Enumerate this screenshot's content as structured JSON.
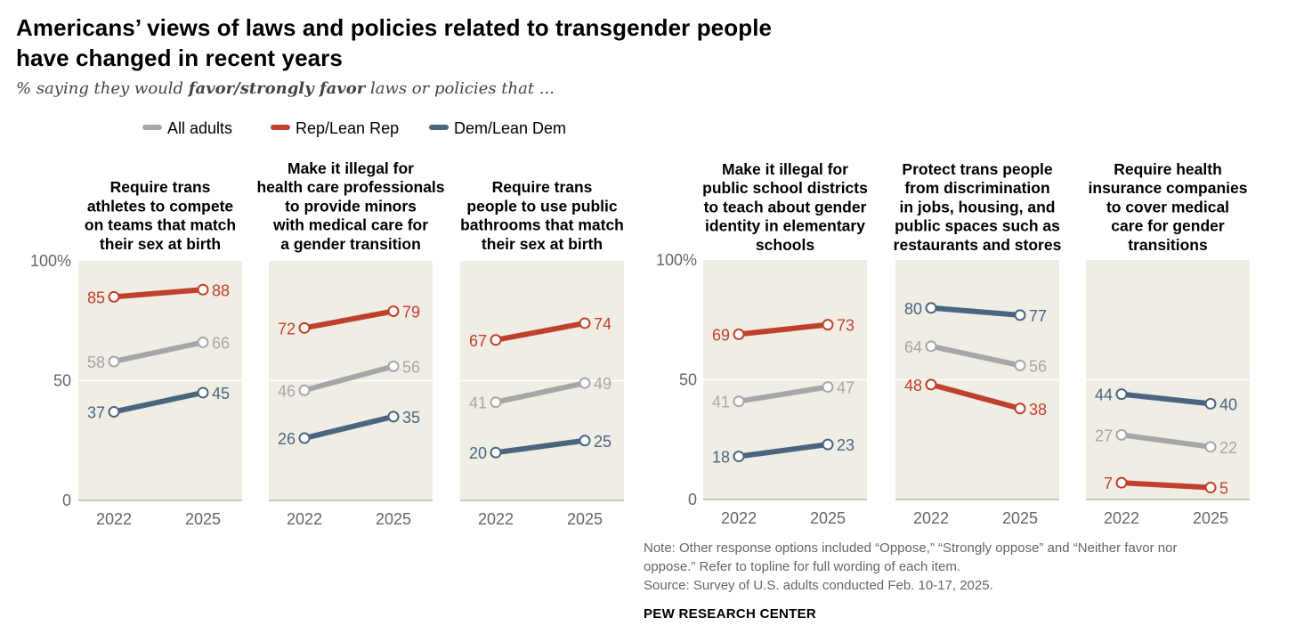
{
  "title": "Americans’ views of laws and policies related to transgender people have changed in recent years",
  "subtitle": {
    "prefix": "% saying they would ",
    "emphasis": "favor/strongly favor",
    "suffix": " laws or policies that ..."
  },
  "colors": {
    "all_adults": "#a6a6a6",
    "rep": "#c0402e",
    "dem": "#4a6580",
    "panel_bg": "#efede4",
    "axis_text": "#666666"
  },
  "legend": [
    {
      "key": "all",
      "label": "All adults"
    },
    {
      "key": "rep",
      "label": "Rep/Lean Rep"
    },
    {
      "key": "dem",
      "label": "Dem/Lean Dem"
    }
  ],
  "chart_data": {
    "type": "line",
    "x": [
      "2022",
      "2025"
    ],
    "y_ticks": [
      "100%",
      "50",
      "0"
    ],
    "ylim": [
      0,
      100
    ],
    "grid": true,
    "legend_position": "top",
    "panels": [
      {
        "title_lines": [
          "Require trans",
          "athletes to compete",
          "on teams that match",
          "their sex at birth"
        ],
        "series": [
          {
            "name": "Rep/Lean Rep",
            "values": [
              85,
              88
            ]
          },
          {
            "name": "All adults",
            "values": [
              58,
              66
            ]
          },
          {
            "name": "Dem/Lean Dem",
            "values": [
              37,
              45
            ]
          }
        ]
      },
      {
        "title_lines": [
          "Make it illegal for",
          "health care professionals",
          "to provide minors",
          "with medical care for",
          "a gender transition"
        ],
        "series": [
          {
            "name": "Rep/Lean Rep",
            "values": [
              72,
              79
            ]
          },
          {
            "name": "All adults",
            "values": [
              46,
              56
            ]
          },
          {
            "name": "Dem/Lean Dem",
            "values": [
              26,
              35
            ]
          }
        ]
      },
      {
        "title_lines": [
          "Require trans",
          "people to use public",
          "bathrooms that match",
          "their sex at birth"
        ],
        "series": [
          {
            "name": "Rep/Lean Rep",
            "values": [
              67,
              74
            ]
          },
          {
            "name": "All adults",
            "values": [
              41,
              49
            ]
          },
          {
            "name": "Dem/Lean Dem",
            "values": [
              20,
              25
            ]
          }
        ]
      },
      {
        "title_lines": [
          "Make it illegal for",
          "public school districts",
          "to teach about gender",
          "identity in elementary",
          "schools"
        ],
        "series": [
          {
            "name": "Rep/Lean Rep",
            "values": [
              69,
              73
            ]
          },
          {
            "name": "All adults",
            "values": [
              41,
              47
            ]
          },
          {
            "name": "Dem/Lean Dem",
            "values": [
              18,
              23
            ]
          }
        ]
      },
      {
        "title_lines": [
          "Protect trans people",
          "from discrimination",
          "in jobs, housing, and",
          "public spaces such as",
          "restaurants and stores"
        ],
        "series": [
          {
            "name": "Dem/Lean Dem",
            "values": [
              80,
              77
            ]
          },
          {
            "name": "All adults",
            "values": [
              64,
              56
            ]
          },
          {
            "name": "Rep/Lean Rep",
            "values": [
              48,
              38
            ]
          }
        ]
      },
      {
        "title_lines": [
          "Require health",
          "insurance companies",
          "to cover medical",
          "care for gender",
          "transitions"
        ],
        "series": [
          {
            "name": "Dem/Lean Dem",
            "values": [
              44,
              40
            ]
          },
          {
            "name": "All adults",
            "values": [
              27,
              22
            ]
          },
          {
            "name": "Rep/Lean Rep",
            "values": [
              7,
              5
            ]
          }
        ]
      }
    ]
  },
  "note_lines": [
    "Note: Other response options included “Oppose,” “Strongly oppose” and “Neither favor nor",
    "oppose.” Refer to topline for full wording of each item.",
    "Source: Survey of U.S. adults conducted Feb. 10-17, 2025."
  ],
  "source_org": "PEW RESEARCH CENTER"
}
